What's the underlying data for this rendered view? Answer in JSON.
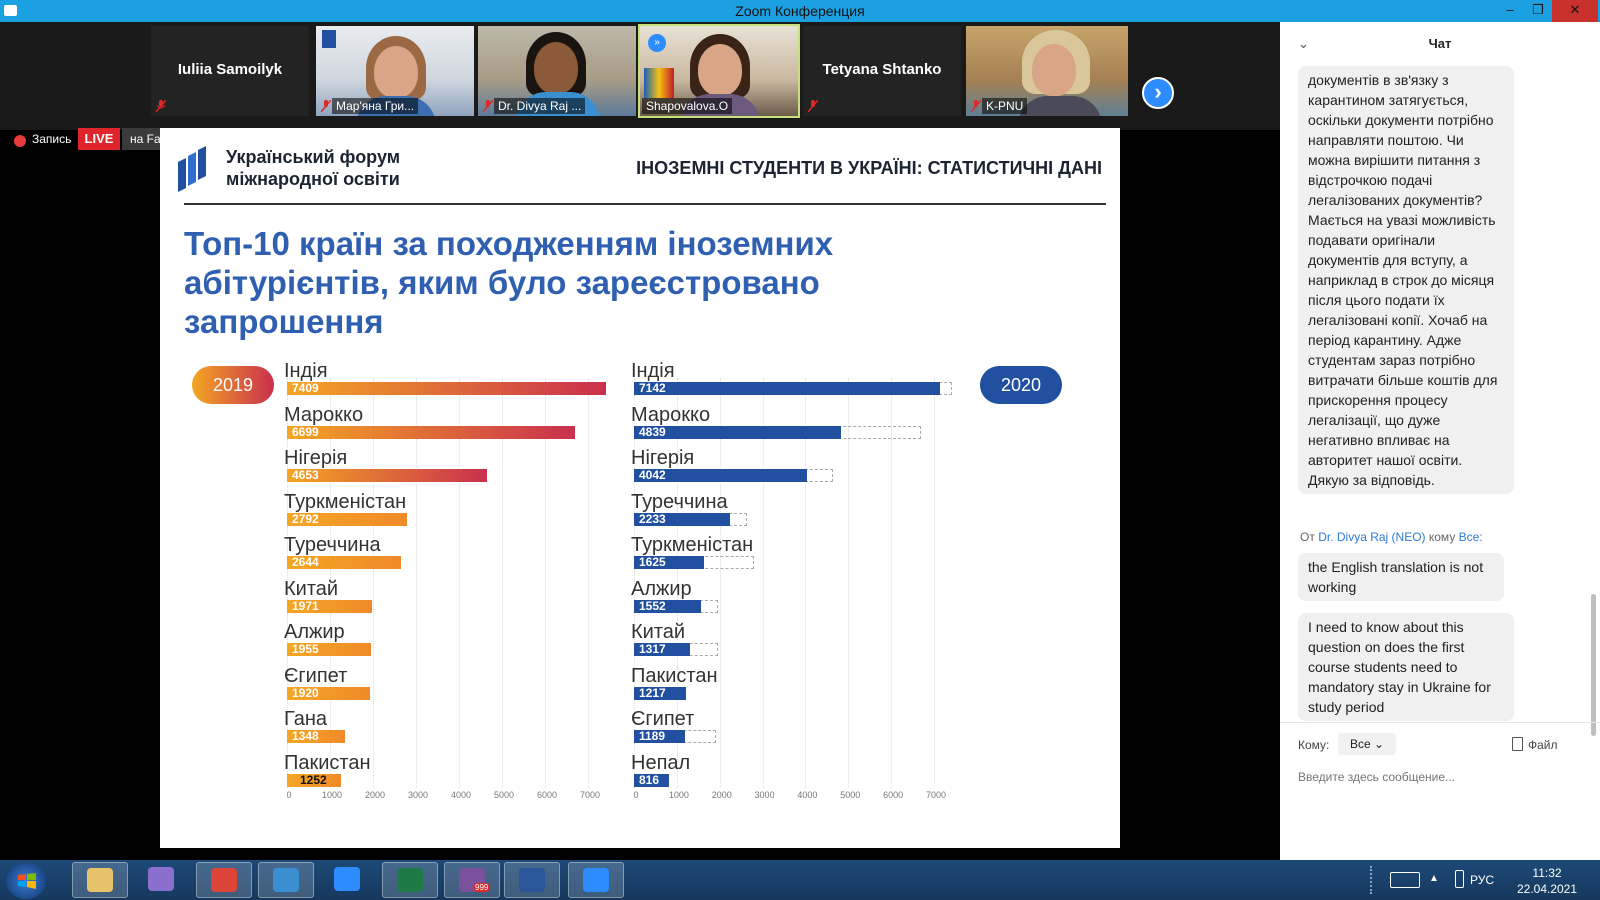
{
  "window": {
    "title": "Zoom Конференция",
    "minimize": "–",
    "restore": "❐",
    "close": "✕"
  },
  "participants": [
    {
      "name": "Iuliia Samoilyk",
      "video": false
    },
    {
      "name": "Мар'яна Гри...",
      "video": true
    },
    {
      "name": "Dr. Divya Raj ...",
      "video": true
    },
    {
      "name": "Shapovalova.O",
      "video": true
    },
    {
      "name": "Tetyana Shtanko",
      "video": false
    },
    {
      "name": "K-PNU",
      "video": true
    }
  ],
  "participants_next": "›",
  "recording": {
    "label": "Запись",
    "live": "LIVE",
    "target": "на Facebook ▾"
  },
  "slide": {
    "org_name": "Український форум міжнародної освіти",
    "header": "ІНОЗЕМНІ СТУДЕНТИ В УКРАЇНІ: СТАТИСТИЧНІ ДАНІ",
    "title": "Топ-10 країн за походженням іноземних абітурієнтів, яким було зареєстровано запрошення"
  },
  "chart_data": [
    {
      "type": "bar",
      "label": "2019",
      "categories": [
        "Індія",
        "Марокко",
        "Нігерія",
        "Туркменістан",
        "Туреччина",
        "Китай",
        "Алжир",
        "Єгипет",
        "Гана",
        "Пакистан"
      ],
      "values": [
        7409,
        6699,
        4653,
        2792,
        2644,
        1971,
        1955,
        1920,
        1348,
        1252
      ],
      "value_labels": [
        "7409",
        "6699",
        "4653",
        "2792",
        "2644",
        "1971",
        "1955",
        "1920",
        "1348",
        "1252"
      ],
      "xticks": [
        "0",
        "1000",
        "2000",
        "3000",
        "4000",
        "5000",
        "6000",
        "7000"
      ],
      "xlim": [
        0,
        7500
      ],
      "colors": {
        "from": "#f4a623",
        "to": "#c9304e"
      }
    },
    {
      "type": "bar",
      "label": "2020",
      "categories": [
        "Індія",
        "Марокко",
        "Нігерія",
        "Туреччина",
        "Туркменістан",
        "Алжир",
        "Китай",
        "Пакистан",
        "Єгипет",
        "Непал"
      ],
      "values": [
        7142,
        4839,
        4042,
        2233,
        1625,
        1552,
        1317,
        1217,
        1189,
        816
      ],
      "value_labels": [
        "7142",
        "4839",
        "4042",
        "2233",
        "1625",
        "1552",
        "1317",
        "1217",
        "1189",
        "816"
      ],
      "previous_year_values": [
        7409,
        6699,
        4653,
        2644,
        2792,
        1955,
        1971,
        null,
        1920,
        null
      ],
      "xticks": [
        "0",
        "1000",
        "2000",
        "3000",
        "4000",
        "5000",
        "6000",
        "7000"
      ],
      "xlim": [
        0,
        7500
      ],
      "colors": {
        "bar": "#2150a0",
        "ghost": "#aaaaaa"
      }
    }
  ],
  "chat": {
    "collapse": "⌄",
    "title": "Чат",
    "messages": [
      "документів в зв'язку з карантином затягується, оскільки документи потрібно направляти поштою. Чи можна вирішити питання з відстрочкою подачі легалізованих документів? Мається на увазі можливість подавати оригінали документів для вступу, а наприклад в строк до місяця після цього подати їх легалізовані копії. Хочаб на період карантину. Адже студентам зараз потрібно витрачати більше коштів для прискорення процесу легалізації, що дуже негативно впливає на авторитет нашої освіти. Дякую за відповідь.",
      "the English translation is not working",
      "I need to know about this question on does the first course students need to mandatory stay in Ukraine for study period"
    ],
    "from_prefix": "От",
    "from_name": "Dr. Divya Raj (NEO)",
    "to_word": "кому",
    "to_name": "Все:",
    "to_label": "Кому:",
    "to_value": "Все ⌄",
    "file_label": "Файл",
    "input_placeholder": "Введите здесь сообщение..."
  },
  "taskbar": {
    "apps": [
      "file-explorer",
      "video-app",
      "chrome",
      "remote-desktop",
      "internet-explorer",
      "excel",
      "viber",
      "word",
      "zoom"
    ],
    "viber_badge": "999",
    "language": "РУС",
    "time": "11:32",
    "date": "22.04.2021"
  }
}
